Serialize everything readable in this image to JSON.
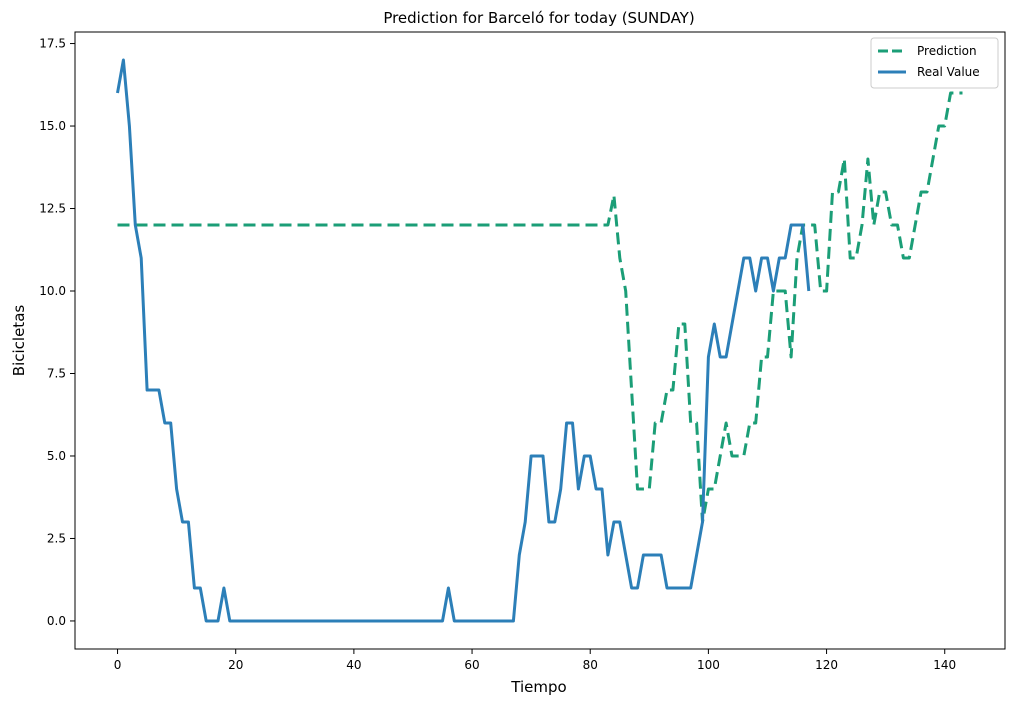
{
  "chart_data": {
    "type": "line",
    "title": "Prediction for Barceló for today (SUNDAY)",
    "xlabel": "Tiempo",
    "ylabel": "Bicicletas",
    "xlim": [
      -7.2,
      150.2
    ],
    "ylim": [
      -0.85,
      17.85
    ],
    "xticks": [
      0,
      20,
      40,
      60,
      80,
      100,
      120,
      140
    ],
    "yticks": [
      0.0,
      2.5,
      5.0,
      7.5,
      10.0,
      12.5,
      15.0,
      17.5
    ],
    "xtick_labels": [
      "0",
      "20",
      "40",
      "60",
      "80",
      "100",
      "120",
      "140"
    ],
    "ytick_labels": [
      "0.0",
      "2.5",
      "5.0",
      "7.5",
      "10.0",
      "12.5",
      "15.0",
      "17.5"
    ],
    "grid": false,
    "legend_position": "top-right",
    "series": [
      {
        "name": "Prediction",
        "color": "#1b9e77",
        "style": "dashed",
        "x": [
          0,
          83,
          84,
          85,
          86,
          87,
          88,
          89,
          90,
          91,
          92,
          93,
          94,
          95,
          96,
          97,
          98,
          99,
          100,
          101,
          102,
          103,
          104,
          105,
          106,
          107,
          108,
          109,
          110,
          111,
          112,
          113,
          114,
          115,
          116,
          117,
          118,
          119,
          120,
          121,
          122,
          123,
          124,
          125,
          126,
          127,
          128,
          129,
          130,
          131,
          132,
          133,
          134,
          135,
          136,
          137,
          138,
          139,
          140,
          141,
          142,
          143
        ],
        "y": [
          12,
          12,
          12.9,
          11,
          10,
          7,
          4,
          4,
          4,
          6,
          6,
          7,
          7,
          9,
          9,
          6,
          6,
          3,
          4,
          4,
          5,
          6,
          5,
          5,
          5,
          6,
          6,
          8,
          8,
          10,
          10,
          10,
          8,
          11,
          12,
          12,
          12,
          10,
          10,
          13,
          13,
          14,
          11,
          11,
          12,
          14,
          12,
          13,
          13,
          12,
          12,
          11,
          11,
          12,
          13,
          13,
          14,
          15,
          15,
          16,
          16,
          16
        ]
      },
      {
        "name": "Real Value",
        "color": "#2c7fb8",
        "style": "solid",
        "x": [
          0,
          1,
          2,
          3,
          4,
          5,
          6,
          7,
          8,
          9,
          10,
          11,
          12,
          13,
          14,
          15,
          16,
          17,
          18,
          19,
          20,
          55,
          56,
          57,
          58,
          67,
          68,
          69,
          70,
          71,
          72,
          73,
          74,
          75,
          76,
          77,
          78,
          79,
          80,
          81,
          82,
          83,
          84,
          85,
          86,
          87,
          88,
          89,
          90,
          91,
          92,
          93,
          94,
          95,
          96,
          97,
          98,
          99,
          100,
          101,
          102,
          103,
          104,
          105,
          106,
          107,
          108,
          109,
          110,
          111,
          112,
          113,
          114,
          115,
          116,
          117
        ],
        "y": [
          16,
          17,
          15,
          12,
          11,
          7,
          7,
          7,
          6,
          6,
          4,
          3,
          3,
          1,
          1,
          0,
          0,
          0,
          1,
          0,
          0,
          0,
          1,
          0,
          0,
          0,
          2,
          3,
          5,
          5,
          5,
          3,
          3,
          4,
          6,
          6,
          4,
          5,
          5,
          4,
          4,
          2,
          3,
          3,
          2,
          1,
          1,
          2,
          2,
          2,
          2,
          1,
          1,
          1,
          1,
          1,
          2,
          3,
          8,
          9,
          8,
          8,
          9,
          10,
          11,
          11,
          10,
          11,
          11,
          10,
          11,
          11,
          12,
          12,
          12,
          10
        ]
      }
    ]
  }
}
